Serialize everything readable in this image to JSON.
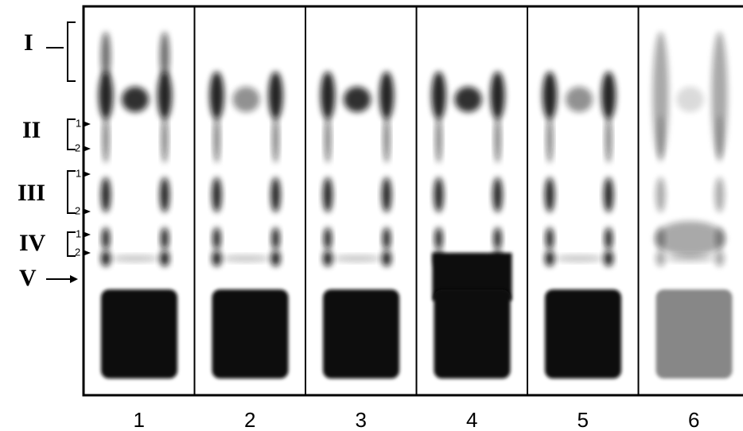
{
  "band_labels": [
    {
      "label": "I"
    },
    {
      "label": "II",
      "sublabels": [
        "1",
        "2"
      ]
    },
    {
      "label": "III",
      "sublabels": [
        "1",
        "2"
      ]
    },
    {
      "label": "IV",
      "sublabels": [
        "1",
        "2"
      ]
    },
    {
      "label": "V"
    }
  ],
  "lanes": [
    "1",
    "2",
    "3",
    "4",
    "5",
    "6"
  ]
}
